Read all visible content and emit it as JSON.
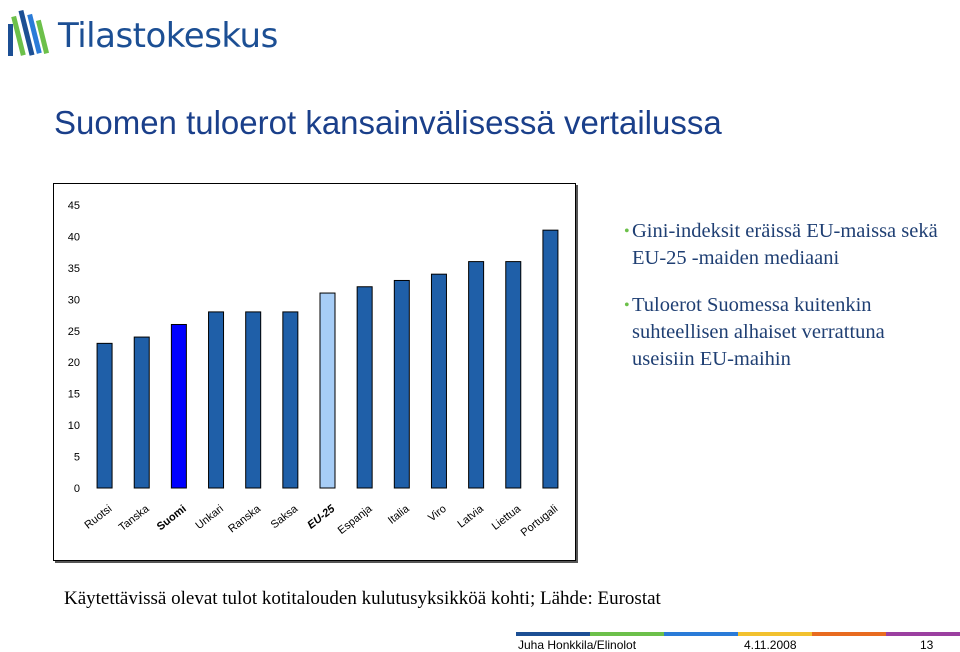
{
  "header": {
    "logo_text": "Tilastokeskus",
    "title": "Suomen tuloerot kansainvälisessä vertailussa"
  },
  "bullets": [
    "Gini-indeksit eräissä EU-maissa sekä EU-25 -maiden mediaani",
    "Tuloerot Suomessa kuitenkin suhteellisen alhaiset verrattuna useisiin EU-maihin"
  ],
  "caption": "Käytettävissä olevat tulot kotitalouden kulutusyksikköä kohti; Lähde: Eurostat",
  "footer": {
    "author": "Juha Honkkila/Elinolot",
    "date": "4.11.2008",
    "page": "13"
  },
  "colors": {
    "bar_default": "#1f5fa8",
    "bar_finland": "#0000ff",
    "bar_eu25": "#a7cdf6",
    "title": "#1a3f8a",
    "bullet_text": "#1f3f73",
    "bullet_marker": "#6cc04a"
  },
  "chart_data": {
    "type": "bar",
    "categories": [
      "Ruotsi",
      "Tanska",
      "Suomi",
      "Unkari",
      "Ranska",
      "Saksa",
      "EU-25",
      "Espanja",
      "Italia",
      "Viro",
      "Latvia",
      "Liettua",
      "Portugali"
    ],
    "values": [
      23,
      24,
      26,
      28,
      28,
      28,
      31,
      32,
      33,
      34,
      36,
      36,
      41
    ],
    "highlight": {
      "Suomi": "bar_finland",
      "EU-25": "bar_eu25"
    },
    "bold_categories": [
      "Suomi",
      "EU-25"
    ],
    "italic_categories": [
      "EU-25"
    ],
    "ylim": [
      0,
      45
    ],
    "yticks": [
      0,
      5,
      10,
      15,
      20,
      25,
      30,
      35,
      40,
      45
    ],
    "grid": false,
    "legend": "none"
  }
}
